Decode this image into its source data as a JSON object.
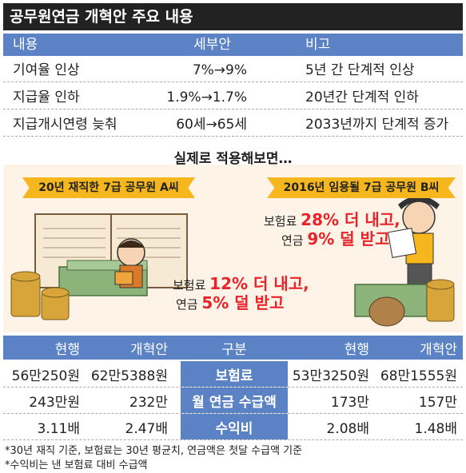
{
  "title": "공무원연금 개혁안 주요 내용",
  "table1": {
    "headers": [
      "내용",
      "세부안",
      "비고"
    ],
    "rows": [
      [
        "기여율 인상",
        "7%→9%",
        "5년 간 단계적 인상"
      ],
      [
        "지급율 인하",
        "1.9%→1.7%",
        "20년간 단계적 인하"
      ],
      [
        "지급개시연령 늦춰",
        "60세→65세",
        "2033년까지 단계적 증가"
      ]
    ]
  },
  "subheading": "실제로 적용해보면…",
  "person_a": {
    "ribbon": "20년 재직한 7급 공무원 A씨",
    "line1_pre": "보험료 ",
    "line1_big": "12% 더 내고,",
    "line2_pre": "연금 ",
    "line2_big": "5% 덜 받고"
  },
  "person_b": {
    "ribbon": "2016년 임용될 7급 공무원 B씨",
    "line1_pre": "보험료 ",
    "line1_big": "28% 더 내고,",
    "line2_pre": "연금 ",
    "line2_big": "9% 덜 받고"
  },
  "table2": {
    "headers": [
      "현행",
      "개혁안",
      "구분",
      "현행",
      "개혁안"
    ],
    "rows": [
      [
        "56만250원",
        "62만5388원",
        "보험료",
        "53만3250원",
        "68만1555원"
      ],
      [
        "243만원",
        "232만",
        "월 연금 수급액",
        "173만",
        "157만"
      ],
      [
        "3.11배",
        "2.47배",
        "수익비",
        "2.08배",
        "1.48배"
      ]
    ]
  },
  "notes": [
    "*30년 재직 기준, 보험료는 30년 평균치, 연금액은 첫달 수급액 기준",
    "*수익비는 낸 보험료 대비 수급액"
  ]
}
